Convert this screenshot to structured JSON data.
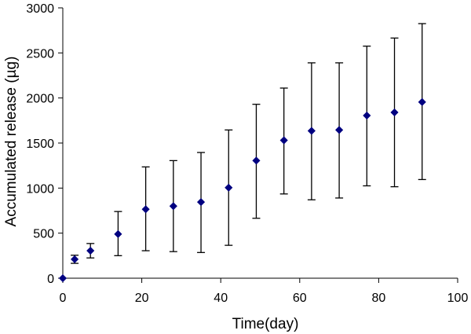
{
  "chart_data": {
    "type": "scatter",
    "title": "",
    "xlabel": "Time(day)",
    "ylabel": "Accumulated release (µg)",
    "xlim": [
      0,
      100
    ],
    "ylim": [
      0,
      3000
    ],
    "xticks": [
      0,
      20,
      40,
      60,
      80,
      100
    ],
    "yticks": [
      0,
      500,
      1000,
      1500,
      2000,
      2500,
      3000
    ],
    "grid": false,
    "marker": "diamond",
    "marker_color": "#000080",
    "error_bars": true,
    "points": [
      {
        "x": 0,
        "y": 0,
        "lower": 0,
        "upper": 0
      },
      {
        "x": 3,
        "y": 210,
        "lower": 165,
        "upper": 255
      },
      {
        "x": 7,
        "y": 305,
        "lower": 225,
        "upper": 385
      },
      {
        "x": 14,
        "y": 490,
        "lower": 250,
        "upper": 740
      },
      {
        "x": 21,
        "y": 765,
        "lower": 305,
        "upper": 1235
      },
      {
        "x": 28,
        "y": 800,
        "lower": 295,
        "upper": 1305
      },
      {
        "x": 35,
        "y": 845,
        "lower": 285,
        "upper": 1395
      },
      {
        "x": 42,
        "y": 1005,
        "lower": 365,
        "upper": 1645
      },
      {
        "x": 49,
        "y": 1305,
        "lower": 665,
        "upper": 1930
      },
      {
        "x": 56,
        "y": 1530,
        "lower": 935,
        "upper": 2110
      },
      {
        "x": 63,
        "y": 1635,
        "lower": 870,
        "upper": 2390
      },
      {
        "x": 70,
        "y": 1645,
        "lower": 890,
        "upper": 2390
      },
      {
        "x": 77,
        "y": 1805,
        "lower": 1025,
        "upper": 2575
      },
      {
        "x": 84,
        "y": 1840,
        "lower": 1015,
        "upper": 2665
      },
      {
        "x": 91,
        "y": 1955,
        "lower": 1095,
        "upper": 2825
      }
    ]
  }
}
